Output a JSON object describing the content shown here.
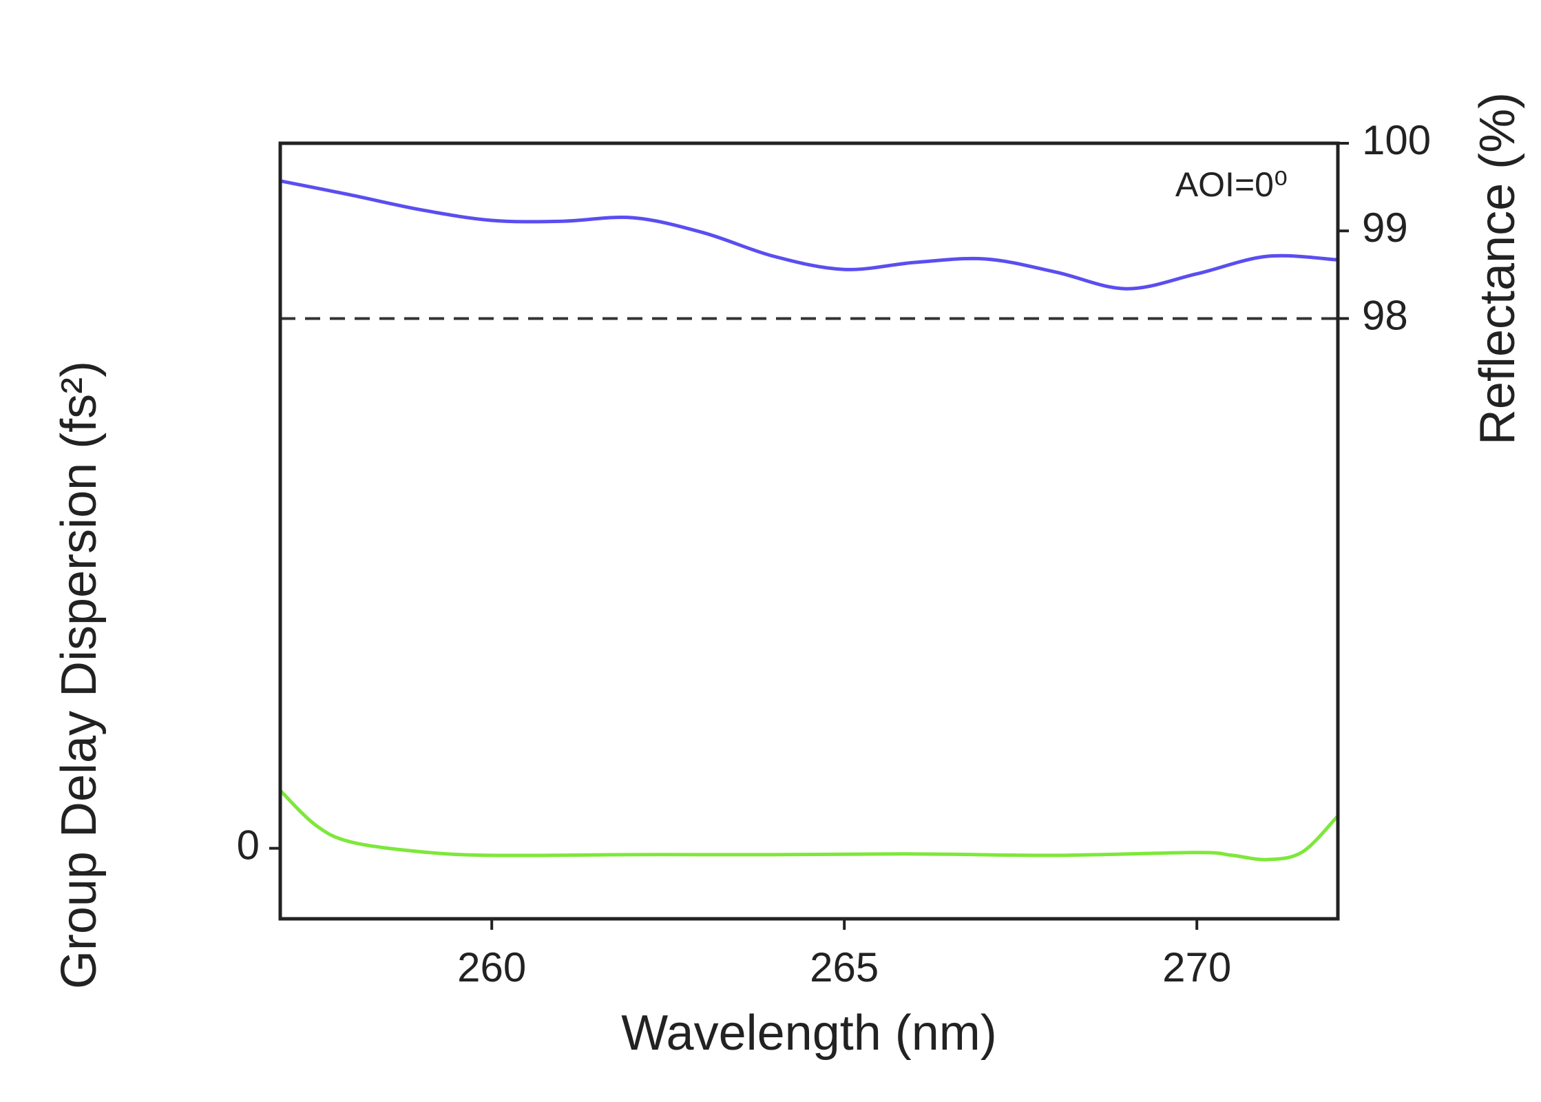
{
  "chart_data": {
    "type": "line",
    "xlabel": "Wavelength (nm)",
    "ylabel": "Group Delay Dispersion (fs²)",
    "y2label": "Reflectance (%)",
    "annotation": "AOI=0⁰",
    "xlim": [
      257,
      272
    ],
    "xticks": [
      260,
      265,
      270
    ],
    "ylim": [
      -1,
      10
    ],
    "yticks": [
      0
    ],
    "y2lim": [
      91.15,
      100
    ],
    "y2ticks": [
      98,
      99,
      100
    ],
    "reference_line": {
      "value": 98,
      "axis": "y2",
      "color": "#333333"
    },
    "series": [
      {
        "color": "#5a4ef0",
        "axis": "y2",
        "x": [
          257,
          258,
          259,
          260,
          261,
          262,
          263,
          264,
          265,
          266,
          267,
          268,
          269,
          270,
          271,
          272
        ],
        "values": [
          99.57,
          99.41,
          99.24,
          99.12,
          99.11,
          99.15,
          98.98,
          98.71,
          98.56,
          98.64,
          98.68,
          98.53,
          98.34,
          98.51,
          98.71,
          98.67
        ]
      },
      {
        "color": "#7de83a",
        "axis": "y",
        "x": [
          257,
          257.5,
          258,
          259,
          260,
          262,
          264,
          266,
          268,
          270,
          270.5,
          271,
          271.5,
          272
        ],
        "values": [
          0.82,
          0.33,
          0.09,
          -0.05,
          -0.1,
          -0.09,
          -0.09,
          -0.08,
          -0.1,
          -0.06,
          -0.1,
          -0.16,
          -0.05,
          0.46
        ]
      }
    ]
  }
}
